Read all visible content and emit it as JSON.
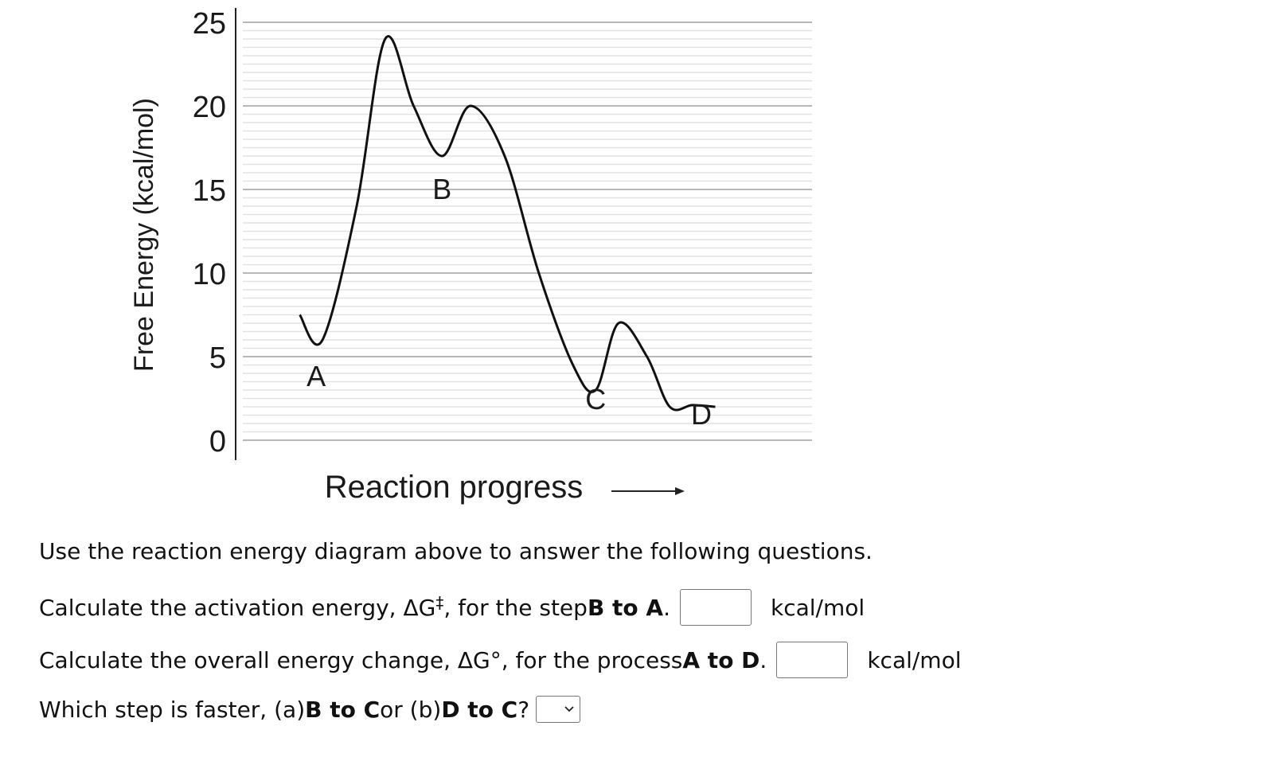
{
  "chart_data": {
    "type": "line",
    "ylabel": "Free Energy (kcal/mol)",
    "xlabel": "Reaction progress",
    "yticks": [
      0,
      5,
      10,
      15,
      20,
      25
    ],
    "ylim": [
      0,
      25
    ],
    "grid": true,
    "series": [
      {
        "x": [
          0.1,
          0.14,
          0.2,
          0.25,
          0.3,
          0.35,
          0.4,
          0.46,
          0.52,
          0.58,
          0.62,
          0.66,
          0.71,
          0.75,
          0.79,
          0.83
        ],
        "values": [
          7.5,
          6.0,
          14.0,
          24.0,
          20.0,
          17.0,
          20.0,
          17.0,
          10.0,
          4.5,
          3.0,
          7.0,
          5.0,
          2.0,
          2.1,
          2.0
        ]
      }
    ],
    "point_labels": [
      {
        "text": "A",
        "x": 0.14,
        "y": 6.0
      },
      {
        "text": "B",
        "x": 0.35,
        "y": 17.0
      },
      {
        "text": "C",
        "x": 0.62,
        "y": 3.0
      },
      {
        "text": "D",
        "x": 0.8,
        "y": 2.0
      }
    ]
  },
  "questions": {
    "intro": "Use the reaction energy diagram above to answer the following questions.",
    "q1": {
      "prefix": "Calculate the activation energy, ΔG",
      "sup": "‡",
      "middle": ", for the step ",
      "bold": "B to A",
      "suffix": ".",
      "value": "",
      "unit": "kcal/mol"
    },
    "q2": {
      "prefix": "Calculate the overall energy change, ΔG°, for the process ",
      "bold": "A to D",
      "suffix": ".",
      "value": "",
      "unit": "kcal/mol"
    },
    "q3": {
      "prefix": "Which step is faster, (a) ",
      "bold1": "B to C",
      "middle": " or (b) ",
      "bold2": "D to C",
      "suffix": "?",
      "selected": ""
    }
  },
  "icons": {
    "dropdown": "chevron-down-icon"
  }
}
